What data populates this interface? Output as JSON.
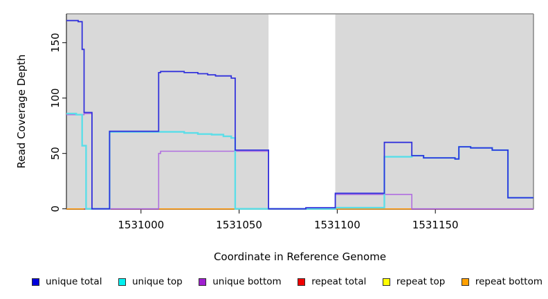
{
  "chart_data": {
    "type": "line",
    "step": true,
    "title": "",
    "xlabel": "Coordinate in Reference Genome",
    "ylabel": "Read Coverage Depth",
    "xlim": [
      1530962,
      1531200
    ],
    "ylim": [
      0,
      176
    ],
    "x_ticks": [
      1531000,
      1531050,
      1531100,
      1531150
    ],
    "y_ticks": [
      0,
      50,
      100,
      150
    ],
    "grid": false,
    "plot_background": "#d9d9d9",
    "gap_region": {
      "x0": 1531065,
      "x1": 1531099,
      "color": "#ffffff"
    },
    "frame_color": "#8c8c8c",
    "axis_color": "#000000",
    "baseline_segments": [
      {
        "x0": 1530962,
        "x1": 1530971,
        "color": "#ffa01e"
      },
      {
        "x0": 1530971,
        "x1": 1531009,
        "color": "#de4878"
      },
      {
        "x0": 1531009,
        "x1": 1531048,
        "color": "#ffa01e"
      },
      {
        "x0": 1531048,
        "x1": 1531065,
        "color": "#57bc77"
      },
      {
        "x0": 1531099,
        "x1": 1531138,
        "color": "#ffa01e"
      },
      {
        "x0": 1531138,
        "x1": 1531200,
        "color": "#de4878"
      }
    ],
    "series": [
      {
        "name": "repeat total",
        "color": "#e03030",
        "width": 1.4,
        "points": [
          [
            1530962,
            0
          ]
        ]
      },
      {
        "name": "repeat top",
        "color": "#ffe800",
        "width": 1.4,
        "points": [
          [
            1530962,
            0
          ]
        ]
      },
      {
        "name": "repeat bottom",
        "color": "#ffa01e",
        "width": 1.4,
        "points": [
          [
            1530962,
            0
          ]
        ]
      },
      {
        "name": "unique bottom",
        "color": "#b06ee0",
        "width": 1.6,
        "points": [
          [
            1530962,
            85
          ],
          [
            1530971,
            86
          ],
          [
            1530975,
            0
          ],
          [
            1531009,
            50
          ],
          [
            1531010,
            52
          ],
          [
            1531065,
            0
          ],
          [
            1531099,
            13
          ],
          [
            1531138,
            0
          ]
        ]
      },
      {
        "name": "unique top",
        "color": "#5cdee8",
        "width": 2.4,
        "points": [
          [
            1530962,
            86
          ],
          [
            1530967,
            85
          ],
          [
            1530970,
            57
          ],
          [
            1530972,
            0
          ],
          [
            1530984,
            69.5
          ],
          [
            1531022,
            68.5
          ],
          [
            1531029,
            67.5
          ],
          [
            1531036,
            67
          ],
          [
            1531042,
            65.5
          ],
          [
            1531046,
            64
          ],
          [
            1531048,
            0
          ],
          [
            1531099,
            1
          ],
          [
            1531124,
            47
          ],
          [
            1531138,
            48
          ],
          [
            1531144,
            46
          ],
          [
            1531160,
            45
          ],
          [
            1531162,
            56
          ],
          [
            1531168,
            55
          ],
          [
            1531179,
            53
          ],
          [
            1531187,
            10
          ]
        ]
      },
      {
        "name": "unique total",
        "color": "#3232dc",
        "width": 1.8,
        "points": [
          [
            1530962,
            170
          ],
          [
            1530968,
            169
          ],
          [
            1530970,
            144
          ],
          [
            1530971,
            87
          ],
          [
            1530975,
            0
          ],
          [
            1530984,
            70
          ],
          [
            1531009,
            123
          ],
          [
            1531010,
            124
          ],
          [
            1531022,
            123
          ],
          [
            1531029,
            122
          ],
          [
            1531034,
            121
          ],
          [
            1531038,
            120
          ],
          [
            1531046,
            118
          ],
          [
            1531048,
            53
          ],
          [
            1531065,
            0
          ],
          [
            1531084,
            1
          ],
          [
            1531099,
            14
          ],
          [
            1531124,
            60
          ],
          [
            1531138,
            48
          ],
          [
            1531144,
            46
          ],
          [
            1531160,
            45
          ],
          [
            1531162,
            56
          ],
          [
            1531168,
            55
          ],
          [
            1531179,
            53
          ],
          [
            1531187,
            10
          ]
        ]
      }
    ],
    "legend": {
      "position": "bottom",
      "entries": [
        {
          "label": "unique total",
          "color": "#0000dc"
        },
        {
          "label": "unique top",
          "color": "#00f0f0"
        },
        {
          "label": "unique bottom",
          "color": "#a020d0"
        },
        {
          "label": "repeat total",
          "color": "#f00000"
        },
        {
          "label": "repeat top",
          "color": "#ffff00"
        },
        {
          "label": "repeat bottom",
          "color": "#ffa000"
        }
      ]
    }
  }
}
